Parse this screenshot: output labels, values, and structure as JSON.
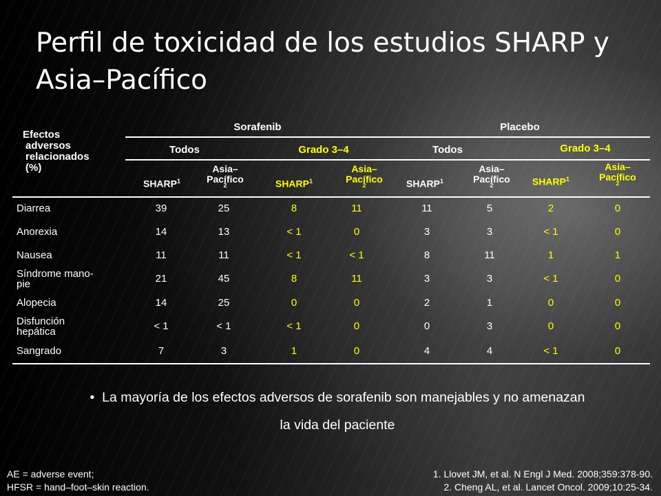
{
  "title": "Perfil de toxicidad de los estudios SHARP y Asia–Pacífico",
  "table": {
    "row_header": [
      "Efectos",
      "adversos",
      "relacionados",
      "(%)"
    ],
    "group_sorafenib": "Sorafenib",
    "group_placebo": "Placebo",
    "todos": "Todos",
    "grado": "Grado 3–4",
    "sharp": "SHARP",
    "sup1": "1",
    "asia_line1": "Asia–",
    "asia_line2": "Pacífico",
    "sup2": "2",
    "rows": [
      {
        "label": [
          "Diarrea"
        ],
        "values": [
          "39",
          "25",
          "8",
          "11",
          "11",
          "5",
          "2",
          "0"
        ]
      },
      {
        "label": [
          "Anorexia"
        ],
        "values": [
          "14",
          "13",
          "< 1",
          "0",
          "3",
          "3",
          "< 1",
          "0"
        ]
      },
      {
        "label": [
          "Nausea"
        ],
        "values": [
          "11",
          "11",
          "< 1",
          "< 1",
          "8",
          "11",
          "1",
          "1"
        ]
      },
      {
        "label": [
          "Síndrome mano-",
          "pie"
        ],
        "values": [
          "21",
          "45",
          "8",
          "11",
          "3",
          "3",
          "< 1",
          "0"
        ]
      },
      {
        "label": [
          "Alopecia"
        ],
        "values": [
          "14",
          "25",
          "0",
          "0",
          "2",
          "1",
          "0",
          "0"
        ]
      },
      {
        "label": [
          "Disfunción",
          "hepática"
        ],
        "values": [
          "< 1",
          "< 1",
          "< 1",
          "0",
          "0",
          "3",
          "0",
          "0"
        ]
      },
      {
        "label": [
          "Sangrado"
        ],
        "values": [
          "7",
          "3",
          "1",
          "0",
          "4",
          "4",
          "< 1",
          "0"
        ]
      }
    ]
  },
  "bullet": {
    "symbol": "•",
    "line1": "La mayoría de los efectos adversos de sorafenib son manejables y no amenazan",
    "line2": "la vida del paciente"
  },
  "footer_left": [
    "AE = adverse event;",
    "HFSR = hand–foot–skin reaction."
  ],
  "footer_right": [
    "1. Llovet JM, et al. N Engl J Med. 2008;359:378-90.",
    "2. Cheng AL, et al. Lancet Oncol. 2009;10:25-34."
  ],
  "colors": {
    "text": "#ffffff",
    "accent": "#ffff00"
  }
}
